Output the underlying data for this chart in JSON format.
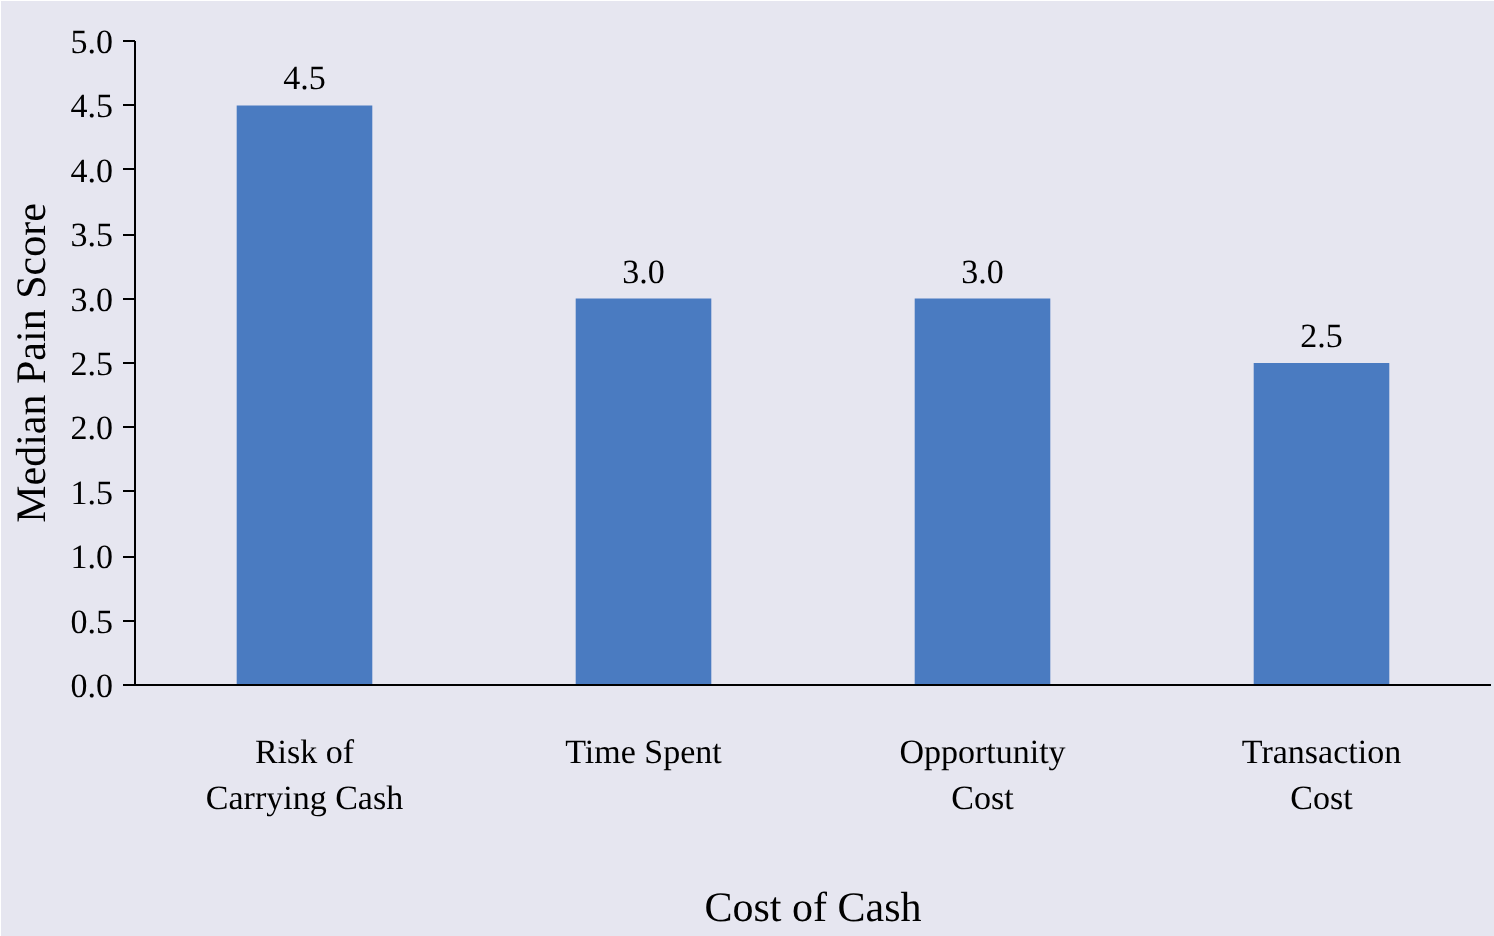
{
  "chart_data": {
    "type": "bar",
    "xlabel": "Cost of Cash",
    "ylabel": "Median Pain Score",
    "categories": [
      "Risk of\nCarrying Cash",
      "Time Spent",
      "Opportunity\nCost",
      "Transaction\nCost"
    ],
    "values": [
      4.5,
      3.0,
      3.0,
      2.5
    ],
    "color": "#4a7bc1",
    "value_labels": [
      "4.5",
      "3.0",
      "3.0",
      "2.5"
    ],
    "ylim": [
      0,
      5
    ],
    "yticks": [
      {
        "value": 0,
        "label": "0.0"
      },
      {
        "value": 0.5,
        "label": "0.5"
      },
      {
        "value": 1,
        "label": "1.0"
      },
      {
        "value": 1.5,
        "label": "1.5"
      },
      {
        "value": 2,
        "label": "2.0"
      },
      {
        "value": 2.5,
        "label": "2.5"
      },
      {
        "value": 3,
        "label": "3.0"
      },
      {
        "value": 3.5,
        "label": "3.5"
      },
      {
        "value": 4,
        "label": "4.0"
      },
      {
        "value": 4.5,
        "label": "4.5"
      },
      {
        "value": 5,
        "label": "5.0"
      }
    ],
    "grid": false
  }
}
